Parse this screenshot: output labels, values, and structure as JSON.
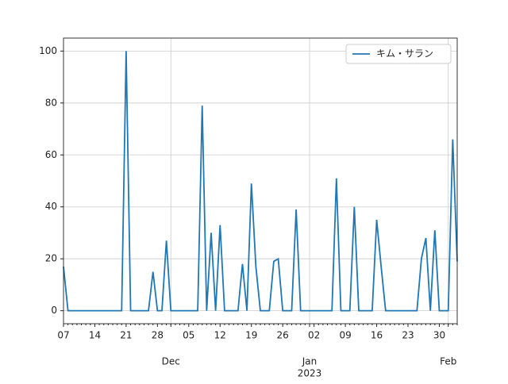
{
  "chart_data": {
    "type": "line",
    "categories": [
      "07",
      null,
      null,
      null,
      null,
      null,
      null,
      "14",
      null,
      null,
      null,
      null,
      null,
      null,
      "21",
      null,
      null,
      null,
      null,
      null,
      null,
      "28",
      null,
      null,
      null,
      null,
      null,
      null,
      "05",
      null,
      null,
      null,
      null,
      null,
      null,
      "12",
      null,
      null,
      null,
      null,
      null,
      null,
      "19",
      null,
      null,
      null,
      null,
      null,
      null,
      "26",
      null,
      null,
      null,
      null,
      null,
      null,
      "02",
      null,
      null,
      null,
      null,
      null,
      null,
      "09",
      null,
      null,
      null,
      null,
      null,
      null,
      "16",
      null,
      null,
      null,
      null,
      null,
      null,
      "23",
      null,
      null,
      null,
      null,
      null,
      null,
      "30",
      null,
      null,
      null,
      null
    ],
    "month_ticks": [
      {
        "value": 24,
        "label": "Dec"
      },
      {
        "value": 55,
        "label": "Jan"
      },
      {
        "value": 86,
        "label": "Feb"
      }
    ],
    "year_label": "2023",
    "series": [
      {
        "name": "キム・サラン",
        "color": "#1f77b4",
        "values": [
          17,
          0,
          0,
          0,
          0,
          0,
          0,
          0,
          0,
          0,
          0,
          0,
          0,
          0,
          100,
          0,
          0,
          0,
          0,
          0,
          15,
          0,
          0,
          27,
          0,
          0,
          0,
          0,
          0,
          0,
          0,
          79,
          0,
          30,
          0,
          33,
          0,
          0,
          0,
          0,
          18,
          0,
          49,
          17,
          0,
          0,
          0,
          19,
          20,
          0,
          0,
          0,
          39,
          0,
          0,
          0,
          0,
          0,
          0,
          0,
          0,
          51,
          0,
          0,
          0,
          40,
          0,
          0,
          0,
          0,
          35,
          17,
          0,
          0,
          0,
          0,
          0,
          0,
          0,
          0,
          20,
          28,
          0,
          31,
          0,
          0,
          0,
          66,
          19
        ]
      }
    ],
    "ylim": [
      -5,
      105
    ],
    "yticks": [
      0,
      20,
      40,
      60,
      80,
      100
    ],
    "grid": true,
    "legend": "upper right"
  }
}
